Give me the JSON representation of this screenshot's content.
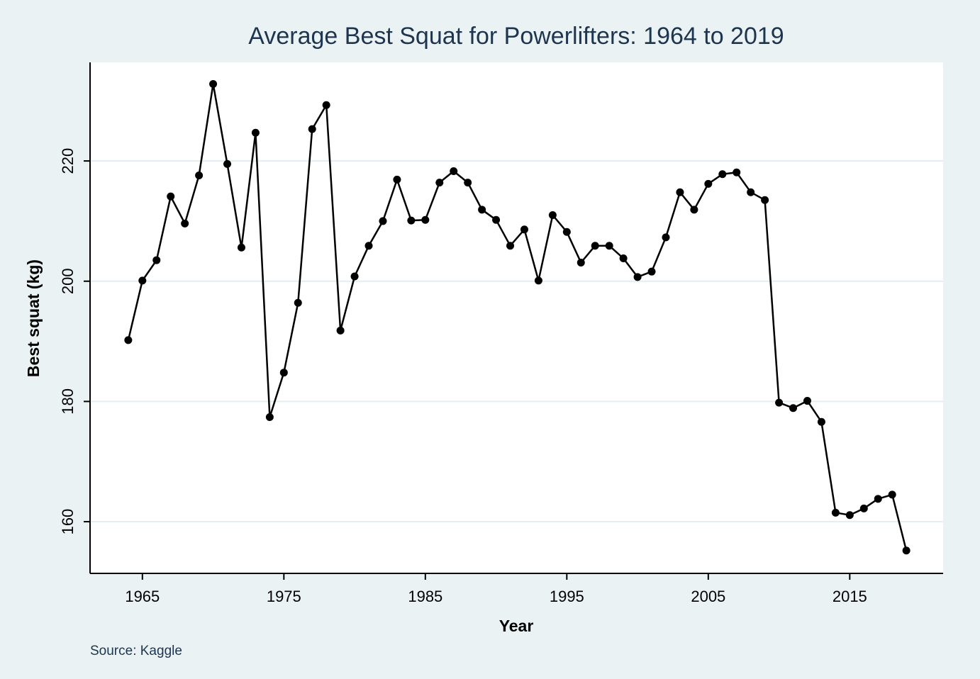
{
  "chart_data": {
    "type": "line",
    "title": "Average Best Squat for Powerlifters: 1964 to 2019",
    "xlabel": "Year",
    "ylabel": "Best squat (kg)",
    "note": "Source: Kaggle",
    "xlim": [
      1961.3,
      2021.6
    ],
    "ylim": [
      151.4,
      236.4
    ],
    "xticks": [
      1965,
      1975,
      1985,
      1995,
      2005,
      2015
    ],
    "yticks": [
      160,
      180,
      200,
      220
    ],
    "grid": "horizontal",
    "legend": "none",
    "colors": {
      "plot_bg": "#ffffff",
      "page_bg": "#eaf2f3",
      "line": "#000000",
      "grid": "#e3eef0",
      "title": "#1e3550"
    },
    "series": [
      {
        "x": [
          1964,
          1965,
          1966,
          1967,
          1968,
          1969,
          1970,
          1971,
          1972,
          1973,
          1974,
          1975,
          1976,
          1977,
          1978,
          1979,
          1980,
          1981,
          1982,
          1983,
          1984,
          1985,
          1986,
          1987,
          1988,
          1989,
          1990,
          1991,
          1992,
          1993,
          1994,
          1995,
          1996,
          1997,
          1998,
          1999,
          2000,
          2001,
          2002,
          2003,
          2004,
          2005,
          2006,
          2007,
          2008,
          2009,
          2010,
          2011,
          2012,
          2013,
          2014,
          2015,
          2016,
          2017,
          2018,
          2019
        ],
        "values": [
          190.2,
          200.1,
          203.5,
          214.1,
          209.6,
          217.6,
          232.8,
          219.5,
          205.6,
          224.7,
          177.4,
          184.8,
          196.4,
          225.3,
          229.3,
          191.8,
          200.8,
          205.9,
          210.0,
          216.9,
          210.1,
          210.2,
          216.4,
          218.3,
          216.4,
          211.9,
          210.2,
          205.9,
          208.6,
          200.1,
          211.0,
          208.2,
          203.1,
          205.9,
          205.9,
          203.8,
          200.7,
          201.6,
          207.3,
          214.8,
          211.9,
          216.2,
          217.8,
          218.1,
          214.8,
          213.5,
          179.8,
          178.9,
          180.1,
          176.6,
          161.5,
          161.1,
          162.2,
          163.8,
          164.5,
          155.2
        ]
      }
    ]
  }
}
